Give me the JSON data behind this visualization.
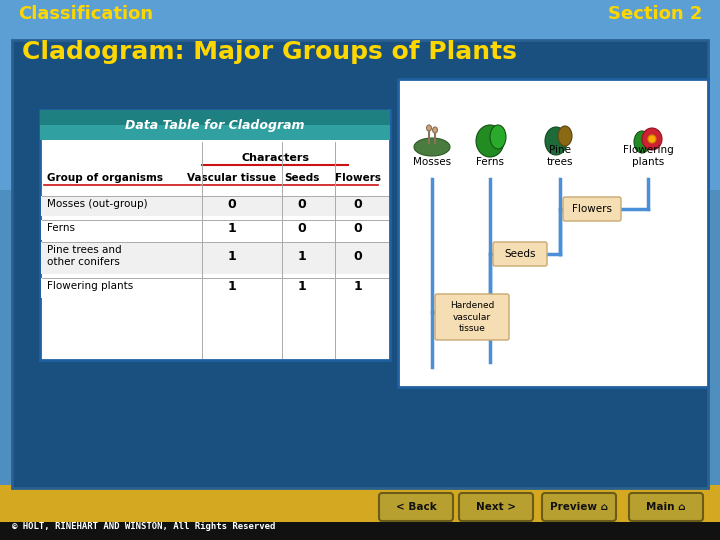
{
  "title_left": "Classification",
  "title_right": "Section 2",
  "subtitle": "Cladogram: Major Groups of Plants",
  "title_color": "#FFD700",
  "subtitle_color": "#FFD700",
  "sky_color": "#5b9fd4",
  "sky_color2": "#6aaedd",
  "main_panel_color": "#1a5080",
  "main_panel_border": "#2060a0",
  "footer_bg": "#d4a820",
  "footer_text_bg": "#111111",
  "table_header_text": "Data Table for Cladogram",
  "table_subheader": "Characters",
  "col_headers": [
    "Group of organisms",
    "Vascular tissue",
    "Seeds",
    "Flowers"
  ],
  "rows": [
    [
      "Mosses (out-group)",
      "0",
      "0",
      "0"
    ],
    [
      "Ferns",
      "1",
      "0",
      "0"
    ],
    [
      "Pine trees and\nother conifers",
      "1",
      "1",
      "0"
    ],
    [
      "Flowering plants",
      "1",
      "1",
      "1"
    ]
  ],
  "cladogram_taxa": [
    "Mosses",
    "Ferns",
    "Pine\ntrees",
    "Flowering\nplants"
  ],
  "node_labels": [
    "Hardened\nvascular\ntissue",
    "Seeds",
    "Flowers"
  ],
  "line_color": "#4a90d9",
  "node_box_color": "#f5deb3",
  "node_box_edge": "#c8a870",
  "footer_text": "© HOLT, RINEHART AND WINSTON, All Rights Reserved",
  "nav_buttons": [
    "< Back",
    "Next >",
    "Preview ⌂",
    "Main ⌂"
  ],
  "btn_color": "#8c8050",
  "btn_border": "#5a5030"
}
